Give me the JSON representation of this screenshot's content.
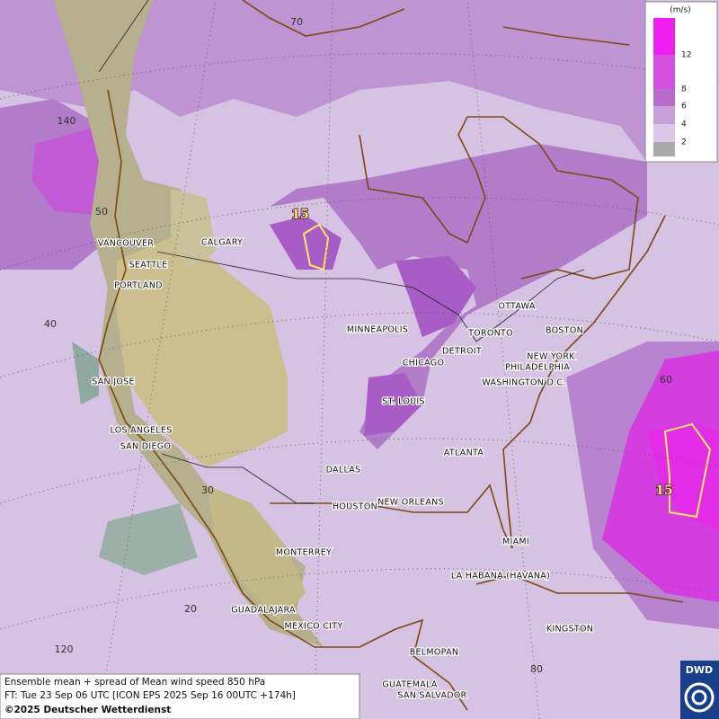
{
  "graticule_labels": [
    "70",
    "140",
    "50",
    "40",
    "30",
    "20",
    "120",
    "60",
    "80"
  ],
  "contour_labels": [
    "15",
    "15"
  ],
  "cities": [
    "VANCOUVER",
    "CALGARY",
    "SEATTLE",
    "PORTLAND",
    "MINNEAPOLIS",
    "OTTAWA",
    "TORONTO",
    "BOSTON",
    "DETROIT",
    "NEW YORK",
    "PHILADELPHIA",
    "CHICAGO",
    "WASHINGTON D.C.",
    "SAN JOSE",
    "ST. LOUIS",
    "LOS ANGELES",
    "SAN DIEGO",
    "ATLANTA",
    "DALLAS",
    "HOUSTON",
    "NEW ORLEANS",
    "MIAMI",
    "MONTERREY",
    "LA HABANA (HAVANA)",
    "GUADALAJARA",
    "MEXICO CITY",
    "KINGSTON",
    "BELMOPAN",
    "GUATEMALA",
    "SAN SALVADOR"
  ],
  "legend": {
    "unit": "(m/s)",
    "ticks": [
      12,
      8,
      6,
      4,
      2
    ]
  },
  "footer": {
    "title": "Ensemble mean + spread of Mean wind speed 850 hPa",
    "forecast": "FT: Tue 23 Sep 06 UTC [ICON EPS 2025 Sep 16 00UTC +174h]",
    "copyright": "©2025 Deutscher Wetterdienst"
  },
  "logo": "DWD"
}
